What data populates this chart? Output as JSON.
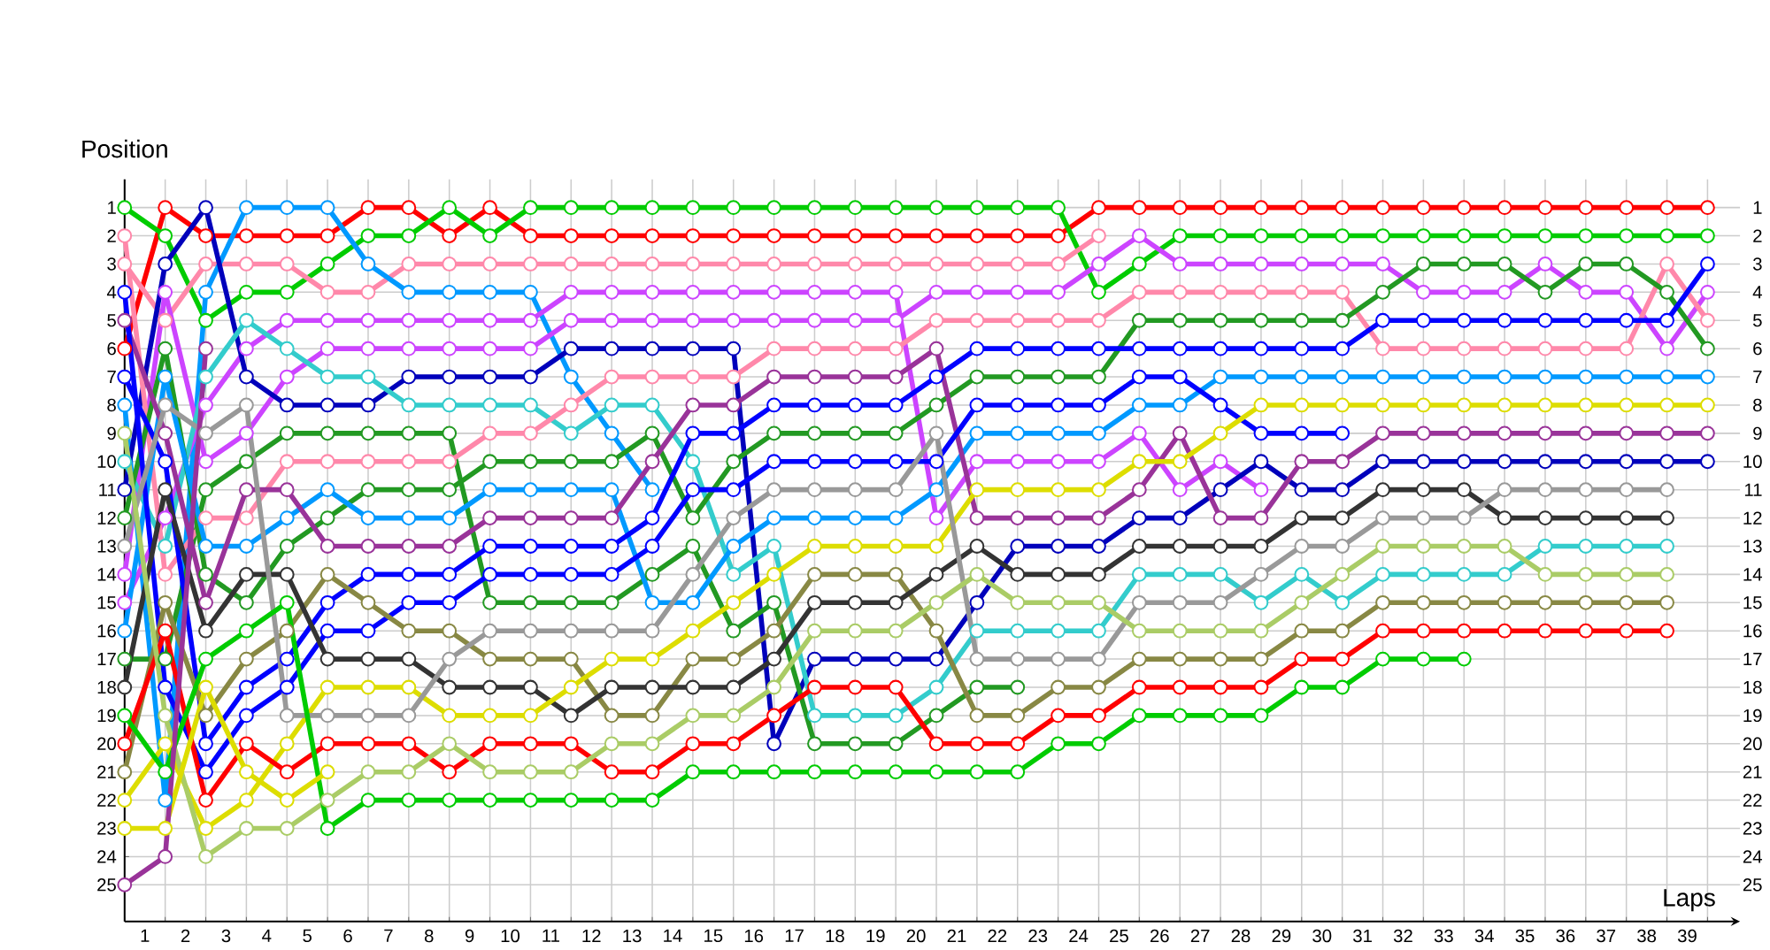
{
  "chart_data": {
    "type": "line",
    "xlabel": "Laps",
    "ylabel": "Position",
    "x": [
      0,
      1,
      2,
      3,
      4,
      5,
      6,
      7,
      8,
      9,
      10,
      11,
      12,
      13,
      14,
      15,
      16,
      17,
      18,
      19,
      20,
      21,
      22,
      23,
      24,
      25,
      26,
      27,
      28,
      29,
      30,
      31,
      32,
      33,
      34,
      35,
      36,
      37,
      38,
      39
    ],
    "xlim": [
      0,
      39.8
    ],
    "ylim": [
      26.3,
      0
    ],
    "y2lim": [
      26.3,
      0
    ],
    "xticks": [
      {
        "value": 0,
        "label": null
      },
      {
        "value": 1,
        "label": null
      },
      {
        "value": 2,
        "label": null
      },
      {
        "value": 3,
        "label": null
      },
      {
        "value": 4,
        "label": null
      },
      {
        "value": 5,
        "label": null
      },
      {
        "value": 6,
        "label": null
      },
      {
        "value": 7,
        "label": null
      },
      {
        "value": 8,
        "label": null
      },
      {
        "value": 9,
        "label": null
      },
      {
        "value": 10,
        "label": null
      },
      {
        "value": 11,
        "label": null
      },
      {
        "value": 12,
        "label": null
      },
      {
        "value": 13,
        "label": null
      },
      {
        "value": 14,
        "label": null
      },
      {
        "value": 15,
        "label": null
      },
      {
        "value": 16,
        "label": null
      },
      {
        "value": 17,
        "label": null
      },
      {
        "value": 18,
        "label": null
      },
      {
        "value": 19,
        "label": null
      },
      {
        "value": 20,
        "label": null
      },
      {
        "value": 21,
        "label": null
      },
      {
        "value": 22,
        "label": null
      },
      {
        "value": 23,
        "label": null
      },
      {
        "value": 24,
        "label": null
      },
      {
        "value": 25,
        "label": null
      },
      {
        "value": 26,
        "label": null
      },
      {
        "value": 27,
        "label": null
      },
      {
        "value": 28,
        "label": null
      },
      {
        "value": 29,
        "label": null
      },
      {
        "value": 30,
        "label": null
      },
      {
        "value": 31,
        "label": null
      },
      {
        "value": 32,
        "label": null
      },
      {
        "value": 33,
        "label": null
      },
      {
        "value": 34,
        "label": null
      },
      {
        "value": 35,
        "label": null
      },
      {
        "value": 36,
        "label": null
      },
      {
        "value": 37,
        "label": null
      },
      {
        "value": 38,
        "label": null
      },
      {
        "value": 39,
        "label": null
      },
      {
        "value": 0.5,
        "label": "1"
      },
      {
        "value": 1.5,
        "label": "2"
      },
      {
        "value": 2.5,
        "label": "3"
      },
      {
        "value": 3.5,
        "label": "4"
      },
      {
        "value": 4.5,
        "label": "5"
      },
      {
        "value": 5.5,
        "label": "6"
      },
      {
        "value": 6.5,
        "label": "7"
      },
      {
        "value": 7.5,
        "label": "8"
      },
      {
        "value": 8.5,
        "label": "9"
      },
      {
        "value": 9.5,
        "label": "10"
      },
      {
        "value": 10.5,
        "label": "11"
      },
      {
        "value": 11.5,
        "label": "12"
      },
      {
        "value": 12.5,
        "label": "13"
      },
      {
        "value": 13.5,
        "label": "14"
      },
      {
        "value": 14.5,
        "label": "15"
      },
      {
        "value": 15.5,
        "label": "16"
      },
      {
        "value": 16.5,
        "label": "17"
      },
      {
        "value": 17.5,
        "label": "18"
      },
      {
        "value": 18.5,
        "label": "19"
      },
      {
        "value": 19.5,
        "label": "20"
      },
      {
        "value": 20.5,
        "label": "21"
      },
      {
        "value": 21.5,
        "label": "22"
      },
      {
        "value": 22.5,
        "label": "23"
      },
      {
        "value": 23.5,
        "label": "24"
      },
      {
        "value": 24.5,
        "label": "25"
      },
      {
        "value": 25.5,
        "label": "26"
      },
      {
        "value": 26.5,
        "label": "27"
      },
      {
        "value": 27.5,
        "label": "28"
      },
      {
        "value": 28.5,
        "label": "29"
      },
      {
        "value": 29.5,
        "label": "30"
      },
      {
        "value": 30.5,
        "label": "31"
      },
      {
        "value": 31.5,
        "label": "32"
      },
      {
        "value": 32.5,
        "label": "33"
      },
      {
        "value": 33.5,
        "label": "34"
      },
      {
        "value": 34.5,
        "label": "35"
      },
      {
        "value": 35.5,
        "label": "36"
      },
      {
        "value": 36.5,
        "label": "37"
      },
      {
        "value": 37.5,
        "label": "38"
      },
      {
        "value": 38.5,
        "label": "39"
      }
    ],
    "yticks": [
      1,
      2,
      3,
      4,
      5,
      6,
      7,
      8,
      9,
      10,
      11,
      12,
      13,
      14,
      15,
      16,
      17,
      18,
      19,
      20,
      21,
      22,
      23,
      24,
      25
    ],
    "y2ticks": [
      1,
      2,
      3,
      4,
      5,
      6,
      7,
      8,
      9,
      10,
      11,
      12,
      13,
      14,
      15,
      16,
      17,
      18,
      19,
      20,
      21,
      22,
      23,
      24,
      25
    ],
    "grid": true,
    "marker": "circle",
    "line_style": "solid",
    "series": [
      {
        "color": "#ff0000",
        "values": [
          6,
          1,
          2,
          2,
          2,
          2,
          1,
          1,
          2,
          1,
          2,
          2,
          2,
          2,
          2,
          2,
          2,
          2,
          2,
          2,
          2,
          2,
          2,
          2,
          1,
          1,
          1,
          1,
          1,
          1,
          1,
          1,
          1,
          1,
          1,
          1,
          1,
          1,
          1,
          1
        ]
      },
      {
        "color": "#00cc00",
        "values": [
          1,
          2,
          5,
          4,
          4,
          3,
          2,
          2,
          1,
          2,
          1,
          1,
          1,
          1,
          1,
          1,
          1,
          1,
          1,
          1,
          1,
          1,
          1,
          1,
          4,
          3,
          2,
          2,
          2,
          2,
          2,
          2,
          2,
          2,
          2,
          2,
          2,
          2,
          2,
          2
        ]
      },
      {
        "color": "#ff88aa",
        "values": [
          3,
          5,
          3,
          3,
          3,
          4,
          4,
          3,
          3,
          3,
          3,
          3,
          3,
          3,
          3,
          3,
          3,
          3,
          3,
          3,
          3,
          3,
          3,
          3,
          2,
          null,
          null,
          null,
          null,
          null,
          null,
          null,
          null,
          null,
          null,
          null,
          null,
          null,
          null,
          null
        ]
      },
      {
        "color": "#0099ff",
        "values": [
          8,
          22,
          4,
          1,
          1,
          1,
          3,
          4,
          4,
          4,
          4,
          7,
          9,
          11,
          null,
          null,
          null,
          null,
          null,
          null,
          null,
          null,
          null,
          null,
          null,
          null,
          null,
          null,
          null,
          null,
          null,
          null,
          null,
          null,
          null,
          null,
          null,
          null,
          null,
          null
        ]
      },
      {
        "color": "#cc44ff",
        "values": [
          15,
          12,
          8,
          6,
          5,
          5,
          5,
          5,
          5,
          5,
          5,
          4,
          4,
          4,
          4,
          4,
          4,
          4,
          4,
          4,
          12,
          10,
          10,
          10,
          10,
          9,
          11,
          10,
          11,
          null,
          null,
          null,
          null,
          null,
          null,
          null,
          null,
          null,
          null,
          null
        ]
      },
      {
        "color": "#cc44ff",
        "values": [
          14,
          4,
          10,
          9,
          7,
          6,
          6,
          6,
          6,
          6,
          6,
          5,
          5,
          5,
          5,
          5,
          5,
          5,
          5,
          5,
          4,
          4,
          4,
          4,
          3,
          2,
          3,
          3,
          3,
          3,
          3,
          3,
          4,
          4,
          4,
          3,
          4,
          4,
          6,
          4
        ]
      },
      {
        "color": "#0000bb",
        "values": [
          11,
          3,
          1,
          7,
          8,
          8,
          8,
          7,
          7,
          7,
          7,
          6,
          6,
          6,
          6,
          6,
          20,
          17,
          17,
          17,
          17,
          15,
          13,
          13,
          13,
          12,
          12,
          11,
          10,
          11,
          11,
          10,
          10,
          10,
          10,
          10,
          10,
          10,
          10,
          10
        ]
      },
      {
        "color": "#33cccc",
        "values": [
          10,
          13,
          7,
          5,
          6,
          7,
          7,
          8,
          8,
          8,
          8,
          9,
          8,
          8,
          10,
          14,
          13,
          19,
          19,
          19,
          18,
          16,
          16,
          16,
          16,
          14,
          14,
          14,
          15,
          14,
          15,
          14,
          14,
          14,
          14,
          13,
          13,
          13,
          13,
          null
        ]
      },
      {
        "color": "#229922",
        "values": [
          17,
          17,
          11,
          10,
          9,
          9,
          9,
          9,
          9,
          15,
          15,
          15,
          15,
          14,
          13,
          16,
          15,
          20,
          20,
          20,
          19,
          18,
          18,
          null,
          null,
          null,
          null,
          null,
          null,
          null,
          null,
          null,
          null,
          null,
          null,
          null,
          null,
          null,
          null,
          null
        ]
      },
      {
        "color": "#ff88aa",
        "values": [
          2,
          14,
          12,
          12,
          10,
          10,
          10,
          10,
          10,
          9,
          9,
          8,
          7,
          7,
          7,
          7,
          6,
          6,
          6,
          6,
          5,
          5,
          5,
          5,
          5,
          4,
          4,
          4,
          4,
          4,
          4,
          6,
          6,
          6,
          6,
          6,
          6,
          6,
          3,
          5
        ]
      },
      {
        "color": "#229922",
        "values": [
          12,
          6,
          14,
          15,
          13,
          12,
          11,
          11,
          11,
          10,
          10,
          10,
          10,
          9,
          12,
          10,
          9,
          9,
          9,
          9,
          8,
          7,
          7,
          7,
          7,
          5,
          5,
          5,
          5,
          5,
          5,
          4,
          3,
          3,
          3,
          4,
          3,
          3,
          4,
          6
        ]
      },
      {
        "color": "#0099ff",
        "values": [
          16,
          7,
          13,
          13,
          12,
          11,
          12,
          12,
          12,
          11,
          11,
          11,
          11,
          15,
          15,
          13,
          12,
          12,
          12,
          12,
          11,
          9,
          9,
          9,
          9,
          8,
          8,
          7,
          7,
          7,
          7,
          7,
          7,
          7,
          7,
          7,
          7,
          7,
          7,
          7
        ]
      },
      {
        "color": "#993399",
        "values": [
          5,
          9,
          15,
          11,
          11,
          13,
          13,
          13,
          13,
          12,
          12,
          12,
          12,
          10,
          8,
          8,
          7,
          7,
          7,
          7,
          6,
          12,
          12,
          12,
          12,
          11,
          9,
          12,
          12,
          10,
          10,
          9,
          9,
          9,
          9,
          9,
          9,
          9,
          9,
          9
        ]
      },
      {
        "color": "#0000ff",
        "values": [
          7,
          10,
          20,
          18,
          17,
          15,
          14,
          14,
          14,
          13,
          13,
          13,
          13,
          12,
          9,
          9,
          8,
          8,
          8,
          8,
          7,
          6,
          6,
          6,
          6,
          6,
          6,
          6,
          6,
          6,
          6,
          5,
          5,
          5,
          5,
          5,
          5,
          5,
          5,
          3
        ]
      },
      {
        "color": "#0000ff",
        "values": [
          4,
          18,
          21,
          19,
          18,
          16,
          16,
          15,
          15,
          14,
          14,
          14,
          14,
          13,
          11,
          11,
          10,
          10,
          10,
          10,
          10,
          8,
          8,
          8,
          8,
          7,
          7,
          8,
          9,
          9,
          9,
          null,
          null,
          null,
          null,
          null,
          null,
          null,
          null,
          null
        ]
      },
      {
        "color": "#888844",
        "values": [
          21,
          15,
          19,
          17,
          16,
          14,
          15,
          16,
          16,
          17,
          17,
          17,
          19,
          19,
          17,
          17,
          16,
          14,
          14,
          14,
          16,
          19,
          19,
          18,
          18,
          17,
          17,
          17,
          17,
          16,
          16,
          15,
          15,
          15,
          15,
          15,
          15,
          15,
          15,
          null
        ]
      },
      {
        "color": "#333333",
        "values": [
          18,
          11,
          16,
          14,
          14,
          17,
          17,
          17,
          18,
          18,
          18,
          19,
          18,
          18,
          18,
          18,
          17,
          15,
          15,
          15,
          14,
          13,
          14,
          14,
          14,
          13,
          13,
          13,
          13,
          12,
          12,
          11,
          11,
          11,
          12,
          12,
          12,
          12,
          12,
          null
        ]
      },
      {
        "color": "#dddd00",
        "values": [
          22,
          20,
          23,
          22,
          20,
          18,
          18,
          18,
          19,
          19,
          19,
          18,
          17,
          17,
          16,
          15,
          14,
          13,
          13,
          13,
          13,
          11,
          11,
          11,
          11,
          10,
          10,
          9,
          8,
          8,
          8,
          8,
          8,
          8,
          8,
          8,
          8,
          8,
          8,
          8
        ]
      },
      {
        "color": "#999999",
        "values": [
          13,
          8,
          9,
          8,
          19,
          19,
          19,
          19,
          17,
          16,
          16,
          16,
          16,
          16,
          14,
          12,
          11,
          11,
          11,
          11,
          9,
          17,
          17,
          17,
          17,
          15,
          15,
          15,
          14,
          13,
          13,
          12,
          12,
          12,
          11,
          11,
          11,
          11,
          11,
          null
        ]
      },
      {
        "color": "#ff0000",
        "values": [
          20,
          16,
          22,
          20,
          21,
          20,
          20,
          20,
          21,
          20,
          20,
          20,
          21,
          21,
          20,
          20,
          19,
          18,
          18,
          18,
          20,
          20,
          20,
          19,
          19,
          18,
          18,
          18,
          18,
          17,
          17,
          16,
          16,
          16,
          16,
          16,
          16,
          16,
          16,
          null
        ]
      },
      {
        "color": "#aacc66",
        "values": [
          9,
          19,
          24,
          23,
          23,
          22,
          21,
          21,
          20,
          21,
          21,
          21,
          20,
          20,
          19,
          19,
          18,
          16,
          16,
          16,
          15,
          14,
          15,
          15,
          15,
          16,
          16,
          16,
          16,
          15,
          14,
          13,
          13,
          13,
          13,
          14,
          14,
          14,
          14,
          null
        ]
      },
      {
        "color": "#00cc00",
        "values": [
          19,
          21,
          17,
          16,
          15,
          23,
          22,
          22,
          22,
          22,
          22,
          22,
          22,
          22,
          21,
          21,
          21,
          21,
          21,
          21,
          21,
          21,
          21,
          20,
          20,
          19,
          19,
          19,
          19,
          18,
          18,
          17,
          17,
          17,
          null,
          null,
          null,
          null,
          null,
          null
        ]
      },
      {
        "color": "#dddd00",
        "values": [
          23,
          23,
          18,
          21,
          22,
          21,
          null,
          null,
          null,
          null,
          null,
          null,
          null,
          null,
          null,
          null,
          null,
          null,
          null,
          null,
          null,
          null,
          null,
          null,
          null,
          null,
          null,
          null,
          null,
          null,
          null,
          null,
          null,
          null,
          null,
          null,
          null,
          null,
          null,
          null
        ]
      },
      {
        "color": "#993399",
        "values": [
          25,
          24,
          6,
          null,
          null,
          null,
          null,
          null,
          null,
          null,
          null,
          null,
          null,
          null,
          null,
          null,
          null,
          null,
          null,
          null,
          null,
          null,
          null,
          null,
          null,
          null,
          null,
          null,
          null,
          null,
          null,
          null,
          null,
          null,
          null,
          null,
          null,
          null,
          null,
          null
        ]
      }
    ]
  }
}
